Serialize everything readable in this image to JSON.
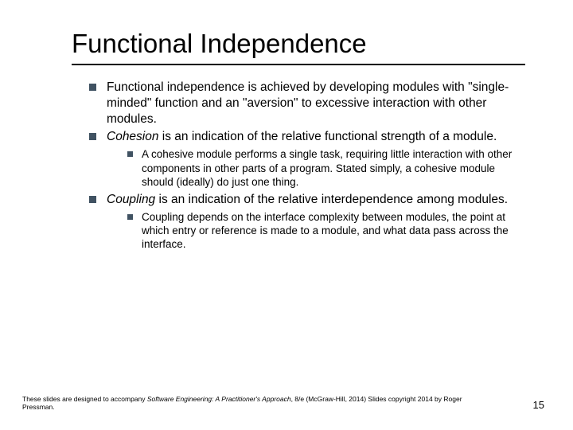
{
  "slide": {
    "title": "Functional Independence",
    "bullets": [
      {
        "level": 1,
        "html": "Functional independence is achieved by developing modules with \"single-minded\" function and an \"aversion\" to excessive interaction with other modules."
      },
      {
        "level": 1,
        "html": "<span class=\"emph\">Cohesion</span> is an indication of the relative functional strength of a module."
      },
      {
        "level": 2,
        "html": "A cohesive module performs a single task, requiring little interaction with other components in other parts of a program. Stated simply, a cohesive module should (ideally) do just one thing."
      },
      {
        "level": 1,
        "html": "<span class=\"emph\">Coupling</span> is an indication of the relative interdependence among modules."
      },
      {
        "level": 2,
        "html": "Coupling depends on the interface complexity between modules, the point at which entry or reference is made to a module, and what data pass across the interface."
      }
    ],
    "footer": {
      "prefix": "These slides are designed to accompany ",
      "book": "Software Engineering: A Practitioner's Approach",
      "suffix": ", 8/e (McGraw-Hill, 2014) Slides copyright 2014 by Roger Pressman."
    },
    "pageNumber": "15"
  },
  "style": {
    "background": "#bfbfc9",
    "slide_bg": "#ffffff",
    "text_color": "#000000",
    "marker_color": "#405262",
    "title_fontsize": 33,
    "body_fontsize": 15.5,
    "sub_fontsize": 13.5,
    "footer_fontsize": 8.5
  }
}
